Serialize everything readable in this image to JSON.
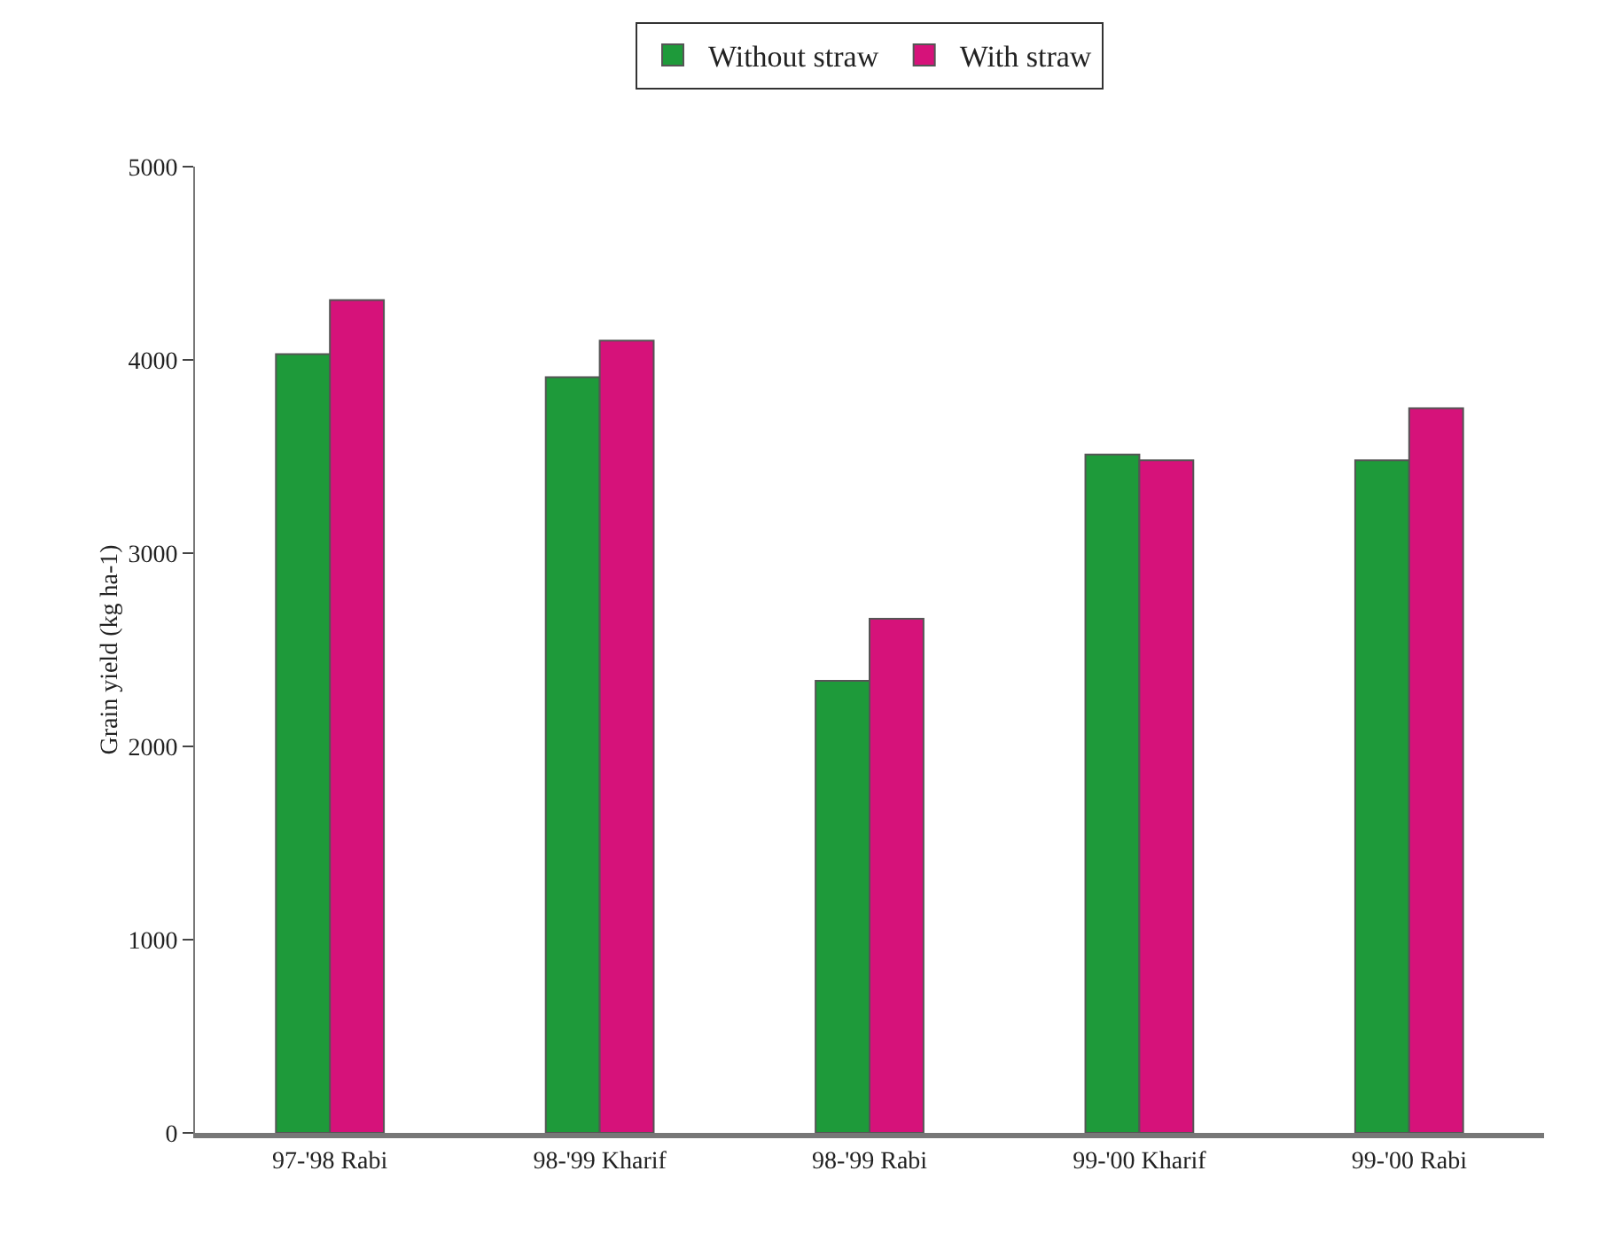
{
  "chart_data": {
    "type": "bar",
    "ylabel": "Grain yield (kg ha-1)",
    "categories": [
      "97-'98 Rabi",
      "98-'99 Kharif",
      "98-'99 Rabi",
      "99-'00 Kharif",
      "99-'00 Rabi"
    ],
    "series": [
      {
        "name": "Without straw",
        "color": "#1e9a3a",
        "values": [
          4030,
          3910,
          2340,
          3510,
          3480
        ]
      },
      {
        "name": "With straw",
        "color": "#d6127a",
        "values": [
          4310,
          4100,
          2660,
          3480,
          3750
        ]
      }
    ],
    "ylim": [
      0,
      5000
    ],
    "yticks": [
      0,
      1000,
      2000,
      3000,
      4000,
      5000
    ],
    "grid": false,
    "legend": "top"
  }
}
